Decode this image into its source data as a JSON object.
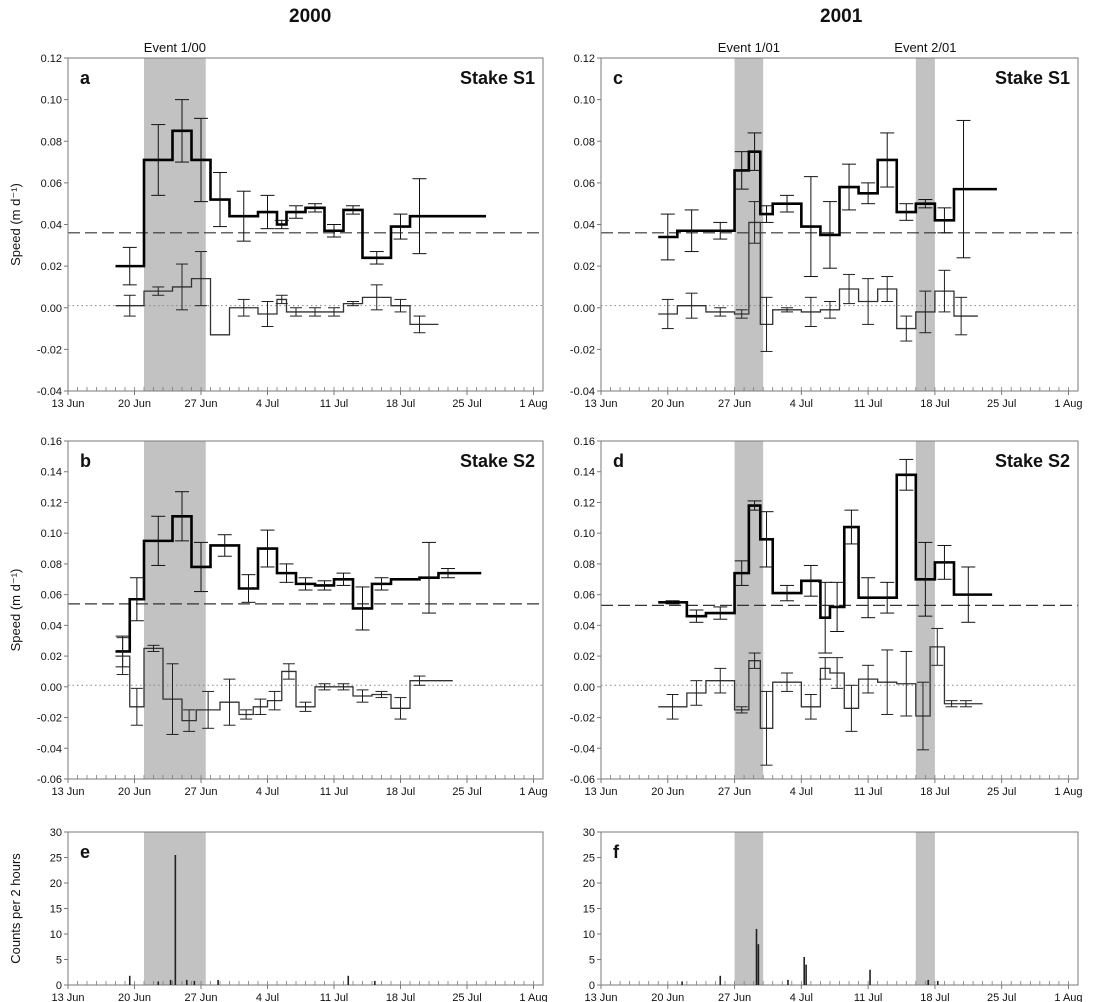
{
  "column_titles": [
    "2000",
    "2001"
  ],
  "colors": {
    "shade": "#c2c2c2",
    "primary": "#000000",
    "secondary": "#333333",
    "axis": "#7a7a7a"
  },
  "x_tick_labels": [
    "13 Jun",
    "20 Jun",
    "27 Jun",
    "4 Jul",
    "11 Jul",
    "18 Jul",
    "25 Jul",
    "1 Aug"
  ],
  "chart_data": [
    {
      "panel": "a",
      "type": "line",
      "step": true,
      "stake_label": "Stake S1",
      "ylabel": "Speed (m d⁻¹)",
      "ylim": [
        -0.04,
        0.12
      ],
      "yticks": [
        -0.04,
        -0.02,
        0.0,
        0.02,
        0.04,
        0.06,
        0.08,
        0.1,
        0.12
      ],
      "ytick_labels": [
        "-0.04",
        "-0.02",
        "0.00",
        "0.02",
        "0.04",
        "0.06",
        "0.08",
        "0.10",
        "0.12"
      ],
      "xlim": [
        "13 Jun",
        "1 Aug"
      ],
      "events": [
        {
          "label": "Event 1/00",
          "start": "21 Jun",
          "end": "27.5 Jun"
        }
      ],
      "reference_lines": [
        {
          "style": "dashed",
          "value": 0.036
        },
        {
          "style": "dotted",
          "value": 0.001
        }
      ],
      "series": [
        {
          "style": "thick",
          "x": [
            18,
            21,
            24,
            26,
            28,
            30,
            33,
            35,
            36,
            38,
            40,
            42,
            44,
            47,
            49,
            51,
            54,
            56
          ],
          "y": [
            0.02,
            0.071,
            0.085,
            0.071,
            0.052,
            0.044,
            0.046,
            0.04,
            0.046,
            0.048,
            0.037,
            0.047,
            0.024,
            0.039,
            0.044,
            0.044,
            0.044,
            0.044
          ],
          "err": [
            0.009,
            0.017,
            0.015,
            0.02,
            0.013,
            0.012,
            0.008,
            0.002,
            0.003,
            0.002,
            0.003,
            0.002,
            0.003,
            0.006,
            0.018,
            0.018,
            0.018,
            0.018
          ],
          "err_show": [
            1,
            1,
            1,
            1,
            1,
            1,
            1,
            1,
            1,
            1,
            1,
            1,
            1,
            1,
            1,
            0,
            0,
            0
          ]
        },
        {
          "style": "thin",
          "x": [
            18,
            21,
            24,
            26,
            28,
            30,
            33,
            35,
            36,
            38,
            40,
            42,
            44,
            47,
            49,
            51
          ],
          "y": [
            0.001,
            0.008,
            0.01,
            0.014,
            -0.013,
            0.0,
            -0.003,
            0.004,
            -0.002,
            -0.002,
            -0.002,
            0.002,
            0.005,
            0.001,
            -0.008,
            -0.008
          ],
          "err": [
            0.005,
            0.002,
            0.011,
            0.013,
            0.001,
            0.004,
            0.006,
            0.002,
            0.002,
            0.002,
            0.002,
            0.001,
            0.006,
            0.003,
            0.004,
            0.004
          ],
          "err_show": [
            1,
            1,
            1,
            1,
            0,
            1,
            1,
            1,
            1,
            1,
            1,
            1,
            1,
            1,
            1,
            0
          ]
        }
      ],
      "xaxis_text_labels": [
        "13 Jun",
        "20 Jun",
        "27 Jun",
        "4 Jul",
        "11 Jul",
        "18 Jul",
        "25 Jul",
        "1 Aug"
      ]
    },
    {
      "panel": "b",
      "type": "line",
      "step": true,
      "stake_label": "Stake S2",
      "ylabel": "Speed (m d⁻¹)",
      "ylim": [
        -0.06,
        0.16
      ],
      "yticks": [
        -0.06,
        -0.04,
        -0.02,
        0.0,
        0.02,
        0.04,
        0.06,
        0.08,
        0.1,
        0.12,
        0.14,
        0.16
      ],
      "ytick_labels": [
        "-0.06",
        "-0.04",
        "-0.02",
        "0.00",
        "0.02",
        "0.04",
        "0.06",
        "0.08",
        "0.10",
        "0.12",
        "0.14",
        "0.16"
      ],
      "xlim": [
        "13 Jun",
        "1 Aug"
      ],
      "events": [
        {
          "label": "",
          "start": "21 Jun",
          "end": "27.5 Jun"
        }
      ],
      "reference_lines": [
        {
          "style": "dashed",
          "value": 0.054
        },
        {
          "style": "dotted",
          "value": 0.001
        }
      ],
      "series": [
        {
          "style": "thick",
          "x": [
            18,
            19.5,
            21,
            24,
            26,
            28,
            31,
            33,
            35,
            37,
            39,
            41,
            43,
            45,
            47,
            50,
            52,
            54,
            55.5
          ],
          "y": [
            0.023,
            0.057,
            0.095,
            0.111,
            0.078,
            0.092,
            0.064,
            0.09,
            0.074,
            0.067,
            0.066,
            0.07,
            0.051,
            0.067,
            0.07,
            0.071,
            0.074,
            0.074,
            0.074
          ],
          "err": [
            0.01,
            0.014,
            0.016,
            0.016,
            0.016,
            0.007,
            0.009,
            0.012,
            0.006,
            0.004,
            0.003,
            0.004,
            0.014,
            0.004,
            0.004,
            0.023,
            0.003,
            0.003,
            0.003
          ],
          "err_show": [
            1,
            1,
            1,
            1,
            1,
            1,
            1,
            1,
            1,
            1,
            1,
            1,
            1,
            1,
            0,
            1,
            1,
            0,
            0
          ]
        },
        {
          "style": "thin",
          "x": [
            18,
            19.5,
            21,
            23,
            25,
            26.5,
            29,
            31,
            32.5,
            34,
            35.5,
            37,
            39,
            41,
            43,
            45,
            47,
            49,
            51,
            52.5
          ],
          "y": [
            0.02,
            -0.013,
            0.025,
            -0.008,
            -0.022,
            -0.015,
            -0.01,
            -0.018,
            -0.013,
            -0.009,
            0.01,
            -0.013,
            0.0,
            0.0,
            -0.006,
            -0.005,
            -0.014,
            0.004,
            0.004,
            0.004
          ],
          "err": [
            0.012,
            0.012,
            0.002,
            0.023,
            0.007,
            0.012,
            0.015,
            0.003,
            0.005,
            0.006,
            0.005,
            0.003,
            0.002,
            0.002,
            0.004,
            0.002,
            0.007,
            0.003,
            0.003,
            0.003
          ],
          "err_show": [
            1,
            1,
            1,
            1,
            1,
            1,
            1,
            1,
            1,
            1,
            1,
            1,
            1,
            1,
            1,
            1,
            1,
            1,
            0,
            0
          ]
        }
      ],
      "xaxis_text_labels": [
        "13 Jun",
        "20 Jun",
        "27 Jun",
        "4 Jul",
        "11 Jul",
        "18 Jul",
        "25 Jul",
        "1 Aug"
      ]
    },
    {
      "panel": "c",
      "type": "line",
      "step": true,
      "stake_label": "Stake S1",
      "ylabel": "",
      "ylim": [
        -0.04,
        0.12
      ],
      "yticks": [
        -0.04,
        -0.02,
        0.0,
        0.02,
        0.04,
        0.06,
        0.08,
        0.1,
        0.12
      ],
      "ytick_labels": [
        "-0.04",
        "-0.02",
        "0.00",
        "0.02",
        "0.04",
        "0.06",
        "0.08",
        "0.10",
        "0.12"
      ],
      "xlim": [
        "13 Jun",
        "1 Aug"
      ],
      "events": [
        {
          "label": "Event 1/01",
          "start": "27 Jun",
          "end": "30 Jun"
        },
        {
          "label": "Event 2/01",
          "start": "16 Jul",
          "end": "18 Jul"
        }
      ],
      "reference_lines": [
        {
          "style": "dashed",
          "value": 0.036
        },
        {
          "style": "dotted",
          "value": 0.001
        }
      ],
      "series": [
        {
          "style": "thick",
          "x": [
            19,
            21,
            24,
            27,
            28.5,
            29.7,
            31,
            34,
            36,
            38,
            40,
            42,
            44,
            46,
            48,
            50,
            52,
            53.5
          ],
          "y": [
            0.034,
            0.037,
            0.037,
            0.066,
            0.075,
            0.045,
            0.05,
            0.039,
            0.035,
            0.058,
            0.055,
            0.071,
            0.046,
            0.05,
            0.042,
            0.057,
            0.057,
            0.057
          ],
          "err": [
            0.011,
            0.01,
            0.004,
            0.009,
            0.009,
            0.004,
            0.004,
            0.024,
            0.016,
            0.011,
            0.005,
            0.013,
            0.004,
            0.002,
            0.006,
            0.033,
            0.033,
            0.033
          ],
          "err_show": [
            1,
            1,
            1,
            1,
            1,
            1,
            1,
            1,
            1,
            1,
            1,
            1,
            1,
            1,
            1,
            1,
            0,
            0
          ]
        },
        {
          "style": "thin",
          "x": [
            19,
            21,
            24,
            27,
            28.5,
            29.7,
            31,
            34,
            36,
            38,
            40,
            42,
            44,
            46,
            48,
            50,
            51.5
          ],
          "y": [
            -0.003,
            0.001,
            -0.002,
            -0.003,
            0.041,
            -0.008,
            -0.001,
            -0.002,
            -0.001,
            0.009,
            0.003,
            0.009,
            -0.01,
            -0.002,
            0.008,
            -0.004,
            -0.004
          ],
          "err": [
            0.007,
            0.006,
            0.002,
            0.002,
            0.01,
            0.013,
            0.001,
            0.007,
            0.004,
            0.007,
            0.011,
            0.006,
            0.006,
            0.01,
            0.01,
            0.009,
            0.009
          ],
          "err_show": [
            1,
            1,
            1,
            1,
            1,
            1,
            1,
            1,
            1,
            1,
            1,
            1,
            1,
            1,
            1,
            1,
            0
          ]
        }
      ],
      "xaxis_text_labels": [
        "13 Jun",
        "20 Jun",
        "27 Jun",
        "4 Jul",
        "11 Jul",
        "18 Jul",
        "25 Jul",
        "1 Aug"
      ]
    },
    {
      "panel": "d",
      "type": "line",
      "step": true,
      "stake_label": "Stake S2",
      "ylabel": "",
      "ylim": [
        -0.06,
        0.16
      ],
      "yticks": [
        -0.06,
        -0.04,
        -0.02,
        0.0,
        0.02,
        0.04,
        0.06,
        0.08,
        0.1,
        0.12,
        0.14,
        0.16
      ],
      "ytick_labels": [
        "-0.06",
        "-0.04",
        "-0.02",
        "0.00",
        "0.02",
        "0.04",
        "0.06",
        "0.08",
        "0.10",
        "0.12",
        "0.14",
        "0.16"
      ],
      "xlim": [
        "13 Jun",
        "1 Aug"
      ],
      "events": [
        {
          "label": "",
          "start": "27 Jun",
          "end": "30 Jun"
        },
        {
          "label": "",
          "start": "16 Jul",
          "end": "18 Jul"
        }
      ],
      "reference_lines": [
        {
          "style": "dashed",
          "value": 0.053
        },
        {
          "style": "dotted",
          "value": 0.001
        }
      ],
      "series": [
        {
          "style": "thick",
          "x": [
            19,
            22,
            24,
            27,
            28.5,
            29.7,
            31,
            34,
            36,
            37,
            38.5,
            40,
            42,
            44,
            46,
            48,
            50,
            53
          ],
          "y": [
            0.055,
            0.046,
            0.048,
            0.074,
            0.118,
            0.096,
            0.061,
            0.069,
            0.045,
            0.052,
            0.104,
            0.058,
            0.058,
            0.138,
            0.07,
            0.081,
            0.06,
            0.06
          ],
          "err": [
            0.001,
            0.004,
            0.004,
            0.008,
            0.003,
            0.018,
            0.005,
            0.01,
            0.023,
            0.016,
            0.011,
            0.013,
            0.01,
            0.01,
            0.024,
            0.011,
            0.018,
            0.018
          ],
          "err_show": [
            1,
            1,
            1,
            1,
            1,
            1,
            1,
            1,
            1,
            1,
            1,
            1,
            1,
            1,
            1,
            1,
            1,
            0
          ]
        },
        {
          "style": "thin",
          "x": [
            19,
            22,
            24,
            27,
            28.5,
            29.7,
            31,
            34,
            36,
            37,
            38.5,
            40,
            42,
            44,
            46,
            47.5,
            49,
            50.5,
            52
          ],
          "y": [
            -0.013,
            -0.004,
            0.004,
            -0.015,
            0.017,
            -0.027,
            0.003,
            -0.013,
            0.012,
            0.009,
            -0.014,
            0.005,
            0.003,
            0.002,
            -0.019,
            0.026,
            -0.011,
            -0.011,
            -0.011
          ],
          "err": [
            0.008,
            0.008,
            0.008,
            0.002,
            0.005,
            0.024,
            0.006,
            0.008,
            0.007,
            0.01,
            0.015,
            0.009,
            0.021,
            0.021,
            0.022,
            0.012,
            0.002,
            0.002,
            0.002
          ],
          "err_show": [
            1,
            1,
            1,
            1,
            1,
            1,
            1,
            1,
            1,
            1,
            1,
            1,
            1,
            1,
            1,
            1,
            1,
            1,
            0
          ]
        }
      ],
      "xaxis_text_labels": [
        "13 Jun",
        "20 Jun",
        "27 Jun",
        "4 Jul",
        "11 Jul",
        "18 Jul",
        "25 Jul",
        "1 Aug"
      ]
    },
    {
      "panel": "e",
      "type": "bar",
      "ylabel": "Counts per 2 hours",
      "ylim": [
        0,
        30
      ],
      "yticks": [
        0,
        5,
        10,
        15,
        20,
        25,
        30
      ],
      "ytick_labels": [
        "0",
        "5",
        "10",
        "15",
        "20",
        "25",
        "30"
      ],
      "xlim": [
        "13 Jun",
        "1 Aug"
      ],
      "events": [
        {
          "label": "",
          "start": "21 Jun",
          "end": "27.5 Jun"
        }
      ],
      "spikes": {
        "x": [
          19.5,
          22.5,
          23.8,
          24.3,
          25.5,
          26.3,
          28.8,
          42.5,
          45.3
        ],
        "values": [
          1.8,
          0.7,
          1.0,
          25.5,
          1.0,
          0.8,
          1.0,
          1.8,
          0.8
        ]
      },
      "xaxis_text_labels": [
        "13 Jun",
        "20 Jun",
        "27 Jun",
        "4 Jul",
        "11 Jul",
        "18 Jul",
        "25 Jul",
        "1 Aug"
      ]
    },
    {
      "panel": "f",
      "type": "bar",
      "ylabel": "",
      "ylim": [
        0,
        30
      ],
      "yticks": [
        0,
        5,
        10,
        15,
        20,
        25,
        30
      ],
      "ytick_labels": [
        "0",
        "5",
        "10",
        "15",
        "20",
        "25",
        "30"
      ],
      "xlim": [
        "13 Jun",
        "1 Aug"
      ],
      "events": [
        {
          "label": "",
          "start": "27 Jun",
          "end": "30 Jun"
        },
        {
          "label": "",
          "start": "16 Jul",
          "end": "18 Jul"
        }
      ],
      "spikes": {
        "x": [
          21.5,
          25.5,
          29.3,
          29.5,
          32.6,
          34.3,
          34.5,
          41.2,
          47.3,
          48.3
        ],
        "values": [
          0.7,
          1.8,
          11.0,
          8.0,
          1.0,
          5.5,
          4.0,
          3.0,
          1.0,
          0.8
        ]
      },
      "xaxis_text_labels": [
        "13 Jun",
        "20 Jun",
        "27 Jun",
        "4 Jul",
        "11 Jul",
        "18 Jul",
        "25 Jul",
        "1 Aug"
      ]
    }
  ]
}
